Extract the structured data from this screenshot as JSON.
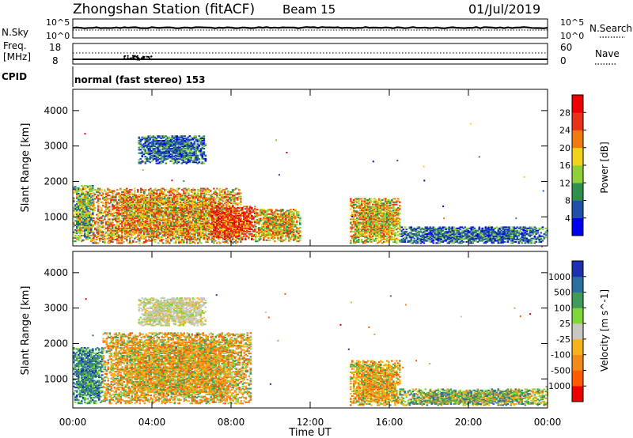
{
  "header": {
    "station": "Zhongshan Station (fitACF)",
    "beam": "Beam 15",
    "date": "01/Jul/2019"
  },
  "top_panels": {
    "sky_label": "N.Sky",
    "sky_ticks": [
      "10^5",
      "10^0"
    ],
    "search_label": "N.Search",
    "search_ticks": [
      "10^5",
      "10^0"
    ],
    "freq_label_1": "Freq.",
    "freq_label_2": "[MHz]",
    "freq_ticks": [
      "18",
      "8"
    ],
    "nave_label": "Nave",
    "nave_ticks": [
      "60",
      "0"
    ],
    "cpid_label": "CPID",
    "cpid_text": "normal (fast stereo) 153"
  },
  "x_axis": {
    "label": "Time UT",
    "ticks": [
      "00:00",
      "04:00",
      "08:00",
      "12:00",
      "16:00",
      "20:00",
      "00:00"
    ]
  },
  "colors": {
    "power_scale": [
      "#0000ee",
      "#1f4fa8",
      "#2e8f4e",
      "#8ecf3a",
      "#f2d21b",
      "#f07a10",
      "#e8331a",
      "#ee0000"
    ],
    "velocity_scale": [
      "#ee0000",
      "#ff5a00",
      "#f08a1a",
      "#f5b21a",
      "#c8c8c0",
      "#7ed63a",
      "#3f9b5a",
      "#2a6ea0",
      "#1f2fb0"
    ]
  },
  "chart_data": [
    {
      "type": "heatmap",
      "title": "Power",
      "ylabel": "Slant Range [km]",
      "xlabel": "",
      "y_ticks": [
        "1000",
        "2000",
        "3000",
        "4000"
      ],
      "colorbar_label": "Power [dB]",
      "colorbar_ticks": [
        "4",
        "8",
        "12",
        "16",
        "20",
        "24",
        "28"
      ],
      "x_range_hours": [
        0,
        24
      ],
      "y_range_km": [
        180,
        4600
      ],
      "regions": [
        {
          "t": [
            0.0,
            1.0
          ],
          "r": [
            300,
            1900
          ],
          "level": "low-mid"
        },
        {
          "t": [
            1.0,
            8.5
          ],
          "r": [
            250,
            1800
          ],
          "level": "mid-high"
        },
        {
          "t": [
            3.3,
            6.7
          ],
          "r": [
            2500,
            3300
          ],
          "level": "low"
        },
        {
          "t": [
            7.0,
            9.2
          ],
          "r": [
            350,
            1300
          ],
          "level": "high"
        },
        {
          "t": [
            9.2,
            11.5
          ],
          "r": [
            300,
            1200
          ],
          "level": "mid"
        },
        {
          "t": [
            14.0,
            16.5
          ],
          "r": [
            250,
            1500
          ],
          "level": "mid"
        },
        {
          "t": [
            16.5,
            24.0
          ],
          "r": [
            250,
            700
          ],
          "level": "low"
        }
      ]
    },
    {
      "type": "heatmap",
      "title": "Velocity",
      "ylabel": "Slant Range [km]",
      "xlabel": "Time UT",
      "y_ticks": [
        "1000",
        "2000",
        "3000",
        "4000"
      ],
      "colorbar_label": "Velocity [m s^-1]",
      "colorbar_ticks": [
        "1000",
        "500",
        "100",
        "25",
        "-25",
        "-100",
        "-500",
        "-1000"
      ],
      "x_range_hours": [
        0,
        24
      ],
      "y_range_km": [
        180,
        4600
      ],
      "regions": [
        {
          "t": [
            0.0,
            1.5
          ],
          "r": [
            300,
            1900
          ],
          "level": "positive"
        },
        {
          "t": [
            1.5,
            9.0
          ],
          "r": [
            300,
            2300
          ],
          "level": "negative"
        },
        {
          "t": [
            3.3,
            6.7
          ],
          "r": [
            2500,
            3300
          ],
          "level": "near-zero"
        },
        {
          "t": [
            14.0,
            16.5
          ],
          "r": [
            250,
            1500
          ],
          "level": "negative"
        },
        {
          "t": [
            16.5,
            24.0
          ],
          "r": [
            250,
            700
          ],
          "level": "mixed"
        }
      ]
    }
  ]
}
